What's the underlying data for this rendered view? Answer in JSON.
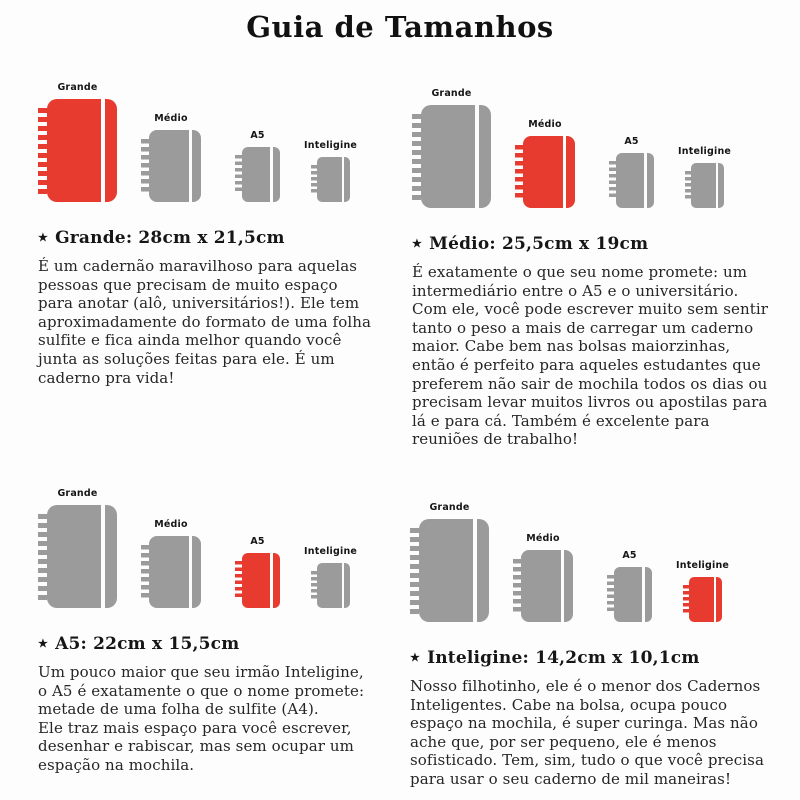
{
  "page": {
    "title": "Guia de Tamanhos",
    "background": "#fdfdfd"
  },
  "colors": {
    "highlight_red": "#e73b2f",
    "notebook_gray": "#9b9b9b",
    "text": "#262626"
  },
  "notebooks": [
    {
      "label": "Grande"
    },
    {
      "label": "Médio"
    },
    {
      "label": "A5"
    },
    {
      "label": "Inteligine"
    }
  ],
  "sections": [
    {
      "name": "grande",
      "highlight_index": 0,
      "bullet": "★",
      "heading": "Grande: 28cm x 21,5cm",
      "body": "É um cadernão maravilhoso para aquelas pessoas que precisam de muito espaço para anotar (alô, universitários!). Ele tem aproximadamente do formato de uma folha sulfite e fica ainda melhor quando você junta as soluções feitas para ele. É um caderno pra vida!"
    },
    {
      "name": "medio",
      "highlight_index": 1,
      "bullet": "★",
      "heading": "Médio: 25,5cm x 19cm",
      "body": "É exatamente o que seu nome promete: um intermediário entre o A5 e o universitário. Com ele, você pode escrever muito sem sentir tanto o peso a mais de carregar um caderno maior. Cabe bem nas bolsas maiorzinhas, então é perfeito para aqueles estudantes que preferem não sair de mochila todos os dias ou precisam levar muitos livros ou apostilas para lá e para cá. Também é excelente para reuniões de trabalho!"
    },
    {
      "name": "a5",
      "highlight_index": 2,
      "bullet": "★",
      "heading": "A5: 22cm x 15,5cm",
      "body": "Um pouco maior que seu irmão Inteligine, o A5 é exatamente o que o nome promete: metade de uma folha de sulfite (A4).\nEle traz mais espaço para você escrever, desenhar e rabiscar, mas sem ocupar um espação na mochila."
    },
    {
      "name": "inteligine",
      "highlight_index": 3,
      "bullet": "★",
      "heading": "Inteligine: 14,2cm x 10,1cm",
      "body": "Nosso filhotinho, ele é o menor dos Cadernos Inteligentes. Cabe na bolsa, ocupa pouco espaço na mochila, é super curinga. Mas não ache que, por ser pequeno, ele é menos sofisticado. Tem, sim, tudo o que você precisa para usar o seu caderno de mil maneiras!"
    }
  ]
}
